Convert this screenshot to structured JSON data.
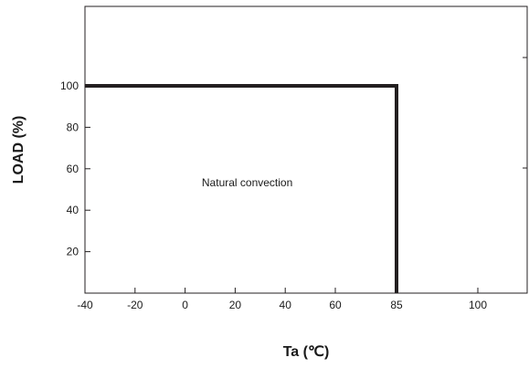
{
  "chart_data": {
    "type": "line",
    "xlabel": "Ta (℃)",
    "ylabel": "LOAD (%)",
    "xlim": [
      -40,
      85
    ],
    "ylim": [
      0,
      120
    ],
    "x_ticks": [
      -40,
      -20,
      0,
      20,
      40,
      60,
      85,
      100
    ],
    "y_ticks": [
      20,
      40,
      60,
      80,
      100
    ],
    "grid": false,
    "series": [
      {
        "x": [
          -40,
          85,
          85
        ],
        "y": [
          100,
          100,
          0
        ]
      }
    ],
    "annotations": [
      {
        "text": "Natural convection",
        "x": 0,
        "y": 60
      }
    ],
    "line_color": "#231f20"
  }
}
